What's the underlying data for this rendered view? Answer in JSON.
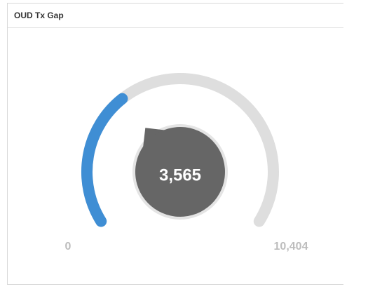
{
  "chart_data": {
    "type": "gauge",
    "title": "OUD Tx Gap",
    "value": 3565,
    "value_labels": "3,565",
    "ylim": [
      0,
      10404
    ],
    "yticks": [
      0,
      {
        "value": 10404,
        "label": "10,404"
      }
    ],
    "color": "#3f8ed4",
    "track_color": "#dedede",
    "needle_color": "#666666"
  }
}
